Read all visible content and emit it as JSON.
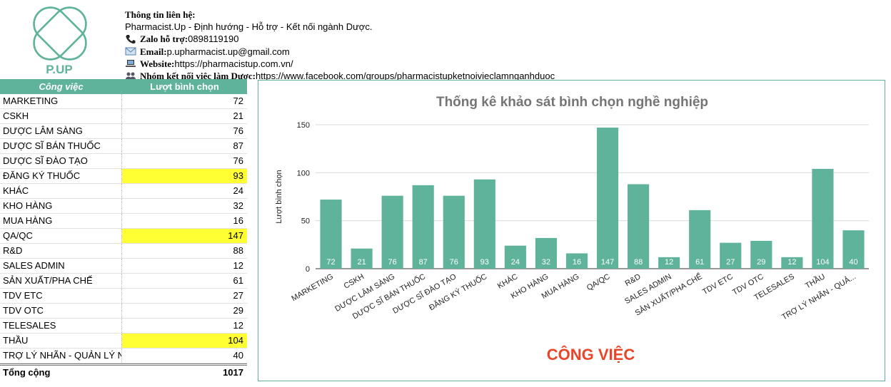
{
  "logo": {
    "text": "P.UP",
    "color": "#5fb39b"
  },
  "contact": {
    "heading": "Thông tin liên hệ:",
    "tagline": "Pharmacist.Up - Định hướng - Hỗ trợ - Kết nối ngành Dược.",
    "zalo_label": "Zalo hỗ trợ:",
    "zalo_value": " 0898119190",
    "email_label": "Email:",
    "email_value": " p.upharmacist.up@gmail.com",
    "website_label": "Website:",
    "website_value": " https://pharmacistup.com.vn/",
    "group_label": "Nhóm kết nối việc làm Dược:",
    "group_value": " https://www.facebook.com/groups/pharmacistupketnoivieclamnganhduoc"
  },
  "table": {
    "col1": "Công việc",
    "col2": "Lượt bình chọn",
    "rows": [
      {
        "job": " MARKETING",
        "votes": "72",
        "hl": false
      },
      {
        "job": "CSKH",
        "votes": "21",
        "hl": false
      },
      {
        "job": "DƯỢC LÂM SÀNG",
        "votes": "76",
        "hl": false
      },
      {
        "job": "DƯỢC SĨ BÁN THUỐC",
        "votes": "87",
        "hl": false
      },
      {
        "job": "DƯỢC SĨ ĐÀO TẠO",
        "votes": "76",
        "hl": false
      },
      {
        "job": "ĐĂNG KÝ THUỐC",
        "votes": "93",
        "hl": true
      },
      {
        "job": "KHÁC",
        "votes": "24",
        "hl": false
      },
      {
        "job": "KHO HÀNG",
        "votes": "32",
        "hl": false
      },
      {
        "job": "MUA HÀNG",
        "votes": "16",
        "hl": false
      },
      {
        "job": "QA/QC",
        "votes": "147",
        "hl": true
      },
      {
        "job": "R&D",
        "votes": "88",
        "hl": false
      },
      {
        "job": "SALES ADMIN",
        "votes": "12",
        "hl": false
      },
      {
        "job": "SẢN XUẤT/PHA CHẾ",
        "votes": "61",
        "hl": false
      },
      {
        "job": "TDV ETC",
        "votes": "27",
        "hl": false
      },
      {
        "job": "TDV OTC",
        "votes": "29",
        "hl": false
      },
      {
        "job": "TELESALES",
        "votes": "12",
        "hl": false
      },
      {
        "job": "THẦU",
        "votes": "104",
        "hl": true
      },
      {
        "job": "TRỢ LÝ NHÃN - QUẢN LÝ NHÃN",
        "votes": "40",
        "hl": false
      }
    ],
    "total_label": "Tổng cộng",
    "total_value": "1017",
    "highlight_color": "#ffff33"
  },
  "chart_data": {
    "type": "bar",
    "title": "Thống kê khảo sát bình chọn nghề nghiệp",
    "xlabel": "CÔNG VIỆC",
    "ylabel": "Lượt bình chọn",
    "ylim": [
      0,
      150
    ],
    "yticks": [
      0,
      50,
      100,
      150
    ],
    "grid": true,
    "bar_color": "#5fb39b",
    "xlabel_color": "#e8452a",
    "categories": [
      "MARKETING",
      "CSKH",
      "DƯỢC LÂM SÀNG",
      "DƯỢC SĨ BÁN THUỐC",
      "DƯỢC SĨ ĐÀO TẠO",
      "ĐĂNG KÝ THUỐC",
      "KHÁC",
      "KHO HÀNG",
      "MUA HÀNG",
      "QA/QC",
      "R&D",
      "SALES ADMIN",
      "SẢN XUẤT/PHA CHẾ",
      "TDV ETC",
      "TDV OTC",
      "TELESALES",
      "THẦU",
      "TRỢ LÝ NHÃN - QUẢ..."
    ],
    "values": [
      72,
      21,
      76,
      87,
      76,
      93,
      24,
      32,
      16,
      147,
      88,
      12,
      61,
      27,
      29,
      12,
      104,
      40
    ]
  }
}
